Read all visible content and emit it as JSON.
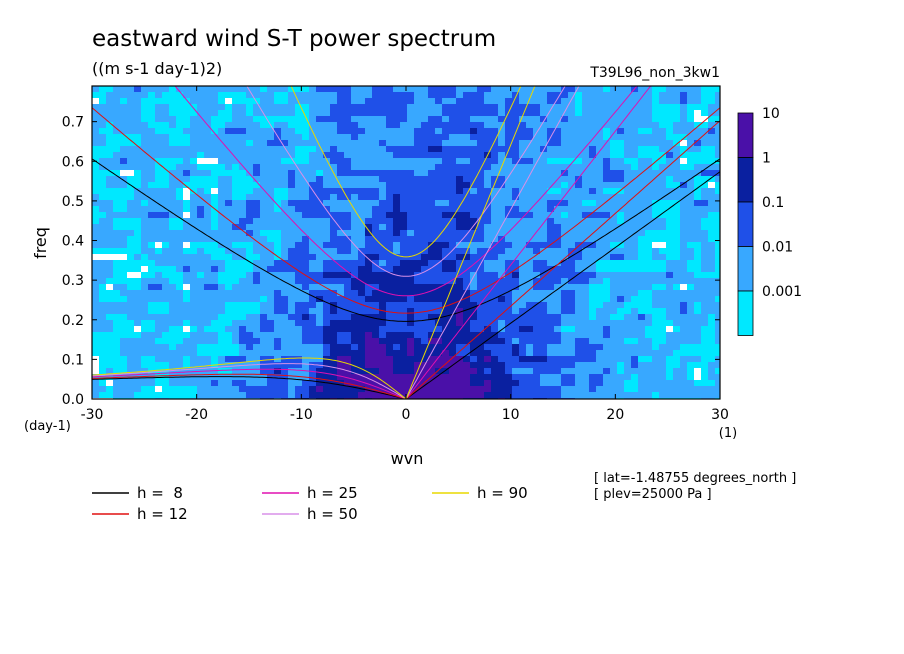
{
  "chart_data": {
    "type": "heatmap",
    "title": "eastward wind S-T power spectrum",
    "subtitle": "((m s-1 day-1)2)",
    "run_label": "T39L96_non_3kw1",
    "xlabel": "wvn",
    "xunit": "(1)",
    "ylabel": "freq",
    "yunit": "(day-1)",
    "xlim": [
      -30,
      30
    ],
    "ylim": [
      0,
      0.79
    ],
    "x_ticks": [
      "-30",
      "-20",
      "-10",
      "0",
      "10",
      "20",
      "30"
    ],
    "x_tick_values": [
      -30,
      -20,
      -10,
      0,
      10,
      20,
      30
    ],
    "y_ticks": [
      "0.0",
      "0.1",
      "0.2",
      "0.3",
      "0.4",
      "0.5",
      "0.6",
      "0.7"
    ],
    "y_tick_values": [
      0,
      0.1,
      0.2,
      0.3,
      0.4,
      0.5,
      0.6,
      0.7
    ],
    "scale": "log",
    "colorbar": {
      "labels": [
        "10",
        "1",
        "0.1",
        "0.01",
        "0.001"
      ],
      "colors": [
        "#4a10a8",
        "#0a20a0",
        "#1f50e8",
        "#38a8ff",
        "#00e8ff"
      ],
      "background": "#ffffff"
    },
    "dispersion_curves": [
      {
        "name": "h =  8",
        "h": 8,
        "color": "#000000"
      },
      {
        "name": "h = 12",
        "h": 12,
        "color": "#e01010"
      },
      {
        "name": "h = 25",
        "h": 25,
        "color": "#e010b0"
      },
      {
        "name": "h = 50",
        "h": 50,
        "color": "#d890e8"
      },
      {
        "name": "h = 90",
        "h": 90,
        "color": "#e8d800"
      }
    ],
    "annotations": [
      "[ lat=-1.48755 degrees_north ]",
      "[ plev=25000 Pa ]"
    ]
  }
}
